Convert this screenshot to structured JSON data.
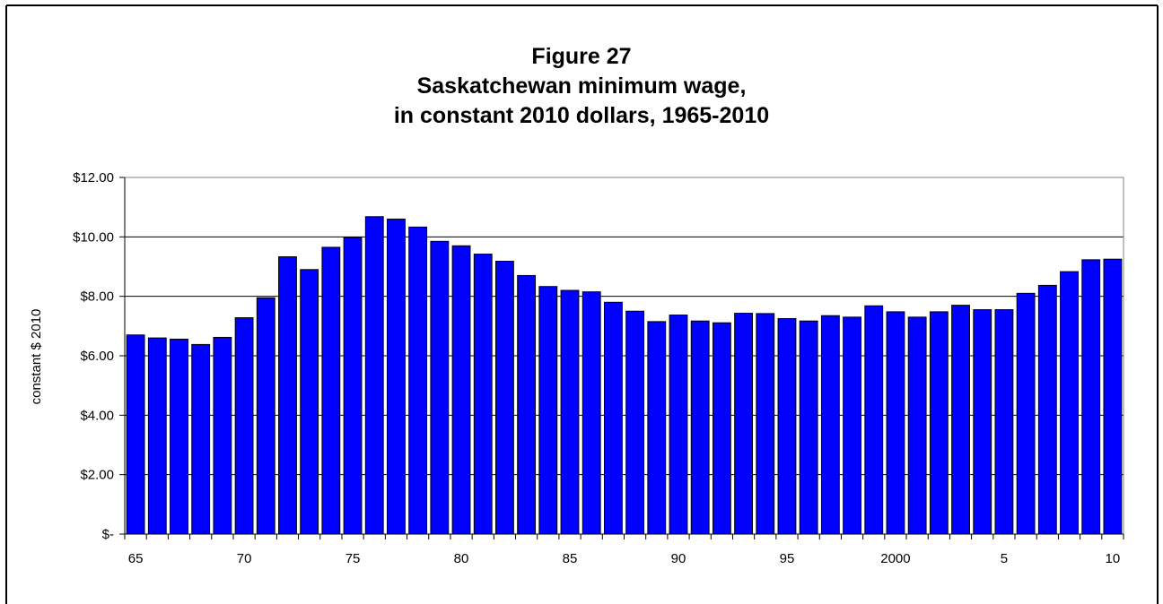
{
  "chart_data": {
    "type": "bar",
    "title": [
      "Figure 27",
      "Saskatchewan minimum wage,",
      "in constant 2010 dollars, 1965-2010"
    ],
    "xlabel": "",
    "ylabel": "constant $ 2010",
    "ylim": [
      0,
      12
    ],
    "y_ticks": [
      0,
      2,
      4,
      6,
      8,
      10,
      12
    ],
    "y_tick_labels": [
      "$-",
      "$2.00",
      "$4.00",
      "$6.00",
      "$8.00",
      "$10.00",
      "$12.00"
    ],
    "categories": [
      "1965",
      "1966",
      "1967",
      "1968",
      "1969",
      "1970",
      "1971",
      "1972",
      "1973",
      "1974",
      "1975",
      "1976",
      "1977",
      "1978",
      "1979",
      "1980",
      "1981",
      "1982",
      "1983",
      "1984",
      "1985",
      "1986",
      "1987",
      "1988",
      "1989",
      "1990",
      "1991",
      "1992",
      "1993",
      "1994",
      "1995",
      "1996",
      "1997",
      "1998",
      "1999",
      "2000",
      "2001",
      "2002",
      "2003",
      "2004",
      "2005",
      "2006",
      "2007",
      "2008",
      "2009",
      "2010"
    ],
    "x_tick_labels": [
      {
        "index": 0,
        "label": "65"
      },
      {
        "index": 5,
        "label": "70"
      },
      {
        "index": 10,
        "label": "75"
      },
      {
        "index": 15,
        "label": "80"
      },
      {
        "index": 20,
        "label": "85"
      },
      {
        "index": 25,
        "label": "90"
      },
      {
        "index": 30,
        "label": "95"
      },
      {
        "index": 35,
        "label": "2000"
      },
      {
        "index": 40,
        "label": "5"
      },
      {
        "index": 45,
        "label": "10"
      }
    ],
    "values": [
      6.7,
      6.6,
      6.56,
      6.38,
      6.62,
      7.28,
      7.95,
      9.33,
      8.9,
      9.65,
      9.98,
      10.68,
      10.6,
      10.33,
      9.85,
      9.7,
      9.42,
      9.18,
      8.7,
      8.33,
      8.2,
      8.15,
      7.8,
      7.5,
      7.15,
      7.37,
      7.17,
      7.11,
      7.43,
      7.42,
      7.25,
      7.17,
      7.35,
      7.3,
      7.68,
      7.48,
      7.3,
      7.48,
      7.7,
      7.55,
      7.55,
      8.1,
      8.37,
      8.83,
      9.23,
      9.25
    ],
    "grid": true,
    "legend": "none",
    "colors": {
      "bar": "#0000FF",
      "bar_edge": "#000000",
      "grid": "#000000",
      "plot_bg": "#FFFFFF"
    }
  }
}
